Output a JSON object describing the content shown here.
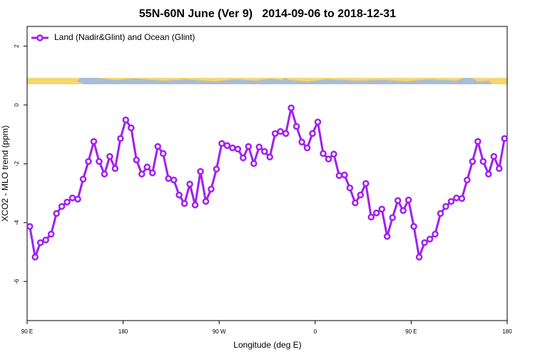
{
  "chart_data": {
    "type": "line",
    "title": "55N-60N June (Ver 9)   2014-09-06 to 2018-12-31",
    "xlabel": "Longitude (deg E)",
    "ylabel": "XCO2 - MLO trend (ppm)",
    "x": [
      92.5,
      97.5,
      102.5,
      107.5,
      112.5,
      117.5,
      122.5,
      127.5,
      132.5,
      137.5,
      142.5,
      147.5,
      152.5,
      157.5,
      162.5,
      167.5,
      172.5,
      177.5,
      182.5,
      187.5,
      192.5,
      197.5,
      202.5,
      207.5,
      212.5,
      217.5,
      222.5,
      227.5,
      232.5,
      237.5,
      242.5,
      247.5,
      252.5,
      257.5,
      262.5,
      267.5,
      272.5,
      277.5,
      282.5,
      287.5,
      292.5,
      297.5,
      302.5,
      307.5,
      312.5,
      317.5,
      322.5,
      327.5,
      332.5,
      337.5,
      342.5,
      347.5,
      352.5,
      357.5,
      362.5,
      367.5,
      372.5,
      377.5,
      382.5,
      387.5,
      392.5,
      397.5,
      402.5,
      407.5,
      412.5,
      417.5,
      422.5,
      427.5,
      432.5,
      437.5,
      442.5,
      447.5,
      452.5,
      457.5,
      462.5,
      467.5,
      472.5,
      477.5,
      482.5,
      487.5,
      492.5,
      497.5,
      502.5,
      507.5,
      512.5,
      517.5,
      522.5,
      527.5,
      532.5,
      537.5
    ],
    "series": [
      {
        "name": "Land (Nadir&Glint) and Ocean (Glint)",
        "color": "#a020f0",
        "values": [
          -4.13,
          -5.17,
          -4.68,
          -4.59,
          -4.39,
          -3.69,
          -3.45,
          -3.3,
          -3.16,
          -3.2,
          -2.52,
          -1.92,
          -1.24,
          -1.92,
          -2.35,
          -1.75,
          -2.16,
          -1.14,
          -0.51,
          -0.78,
          -1.87,
          -2.35,
          -2.11,
          -2.31,
          -1.41,
          -1.65,
          -2.5,
          -2.55,
          -3.06,
          -3.35,
          -2.69,
          -3.4,
          -2.26,
          -3.28,
          -2.86,
          -2.18,
          -1.31,
          -1.38,
          -1.46,
          -1.5,
          -1.8,
          -1.41,
          -1.99,
          -1.43,
          -1.58,
          -1.77,
          -0.97,
          -0.9,
          -0.97,
          -0.1,
          -0.73,
          -1.26,
          -1.46,
          -0.97,
          -0.58,
          -1.65,
          -1.84,
          -1.67,
          -2.4,
          -2.38,
          -2.82,
          -3.33,
          -3.06,
          -2.67,
          -3.81,
          -3.67,
          -3.54,
          -4.47,
          -3.83,
          -3.25,
          -3.59,
          -3.23,
          -4.13,
          -5.17,
          -4.68,
          -4.56,
          -4.39,
          -3.69,
          -3.45,
          -3.28,
          -3.16,
          -3.18,
          -2.55,
          -1.92,
          -1.24,
          -1.92,
          -2.35,
          -1.75,
          -2.16,
          -1.14
        ]
      }
    ],
    "xlim": [
      90,
      540
    ],
    "xticks": [
      {
        "value": 90,
        "label": "90 E"
      },
      180,
      {
        "value": 270,
        "label": "90 W"
      },
      {
        "value": 360,
        "label": "0"
      },
      {
        "value": 450,
        "label": "90 E"
      },
      {
        "value": 540,
        "label": "180"
      }
    ],
    "ylim": [
      -7.33,
      2.67
    ],
    "yticks": [
      2,
      0,
      -2,
      -4,
      -6
    ],
    "legend": "top-left"
  }
}
